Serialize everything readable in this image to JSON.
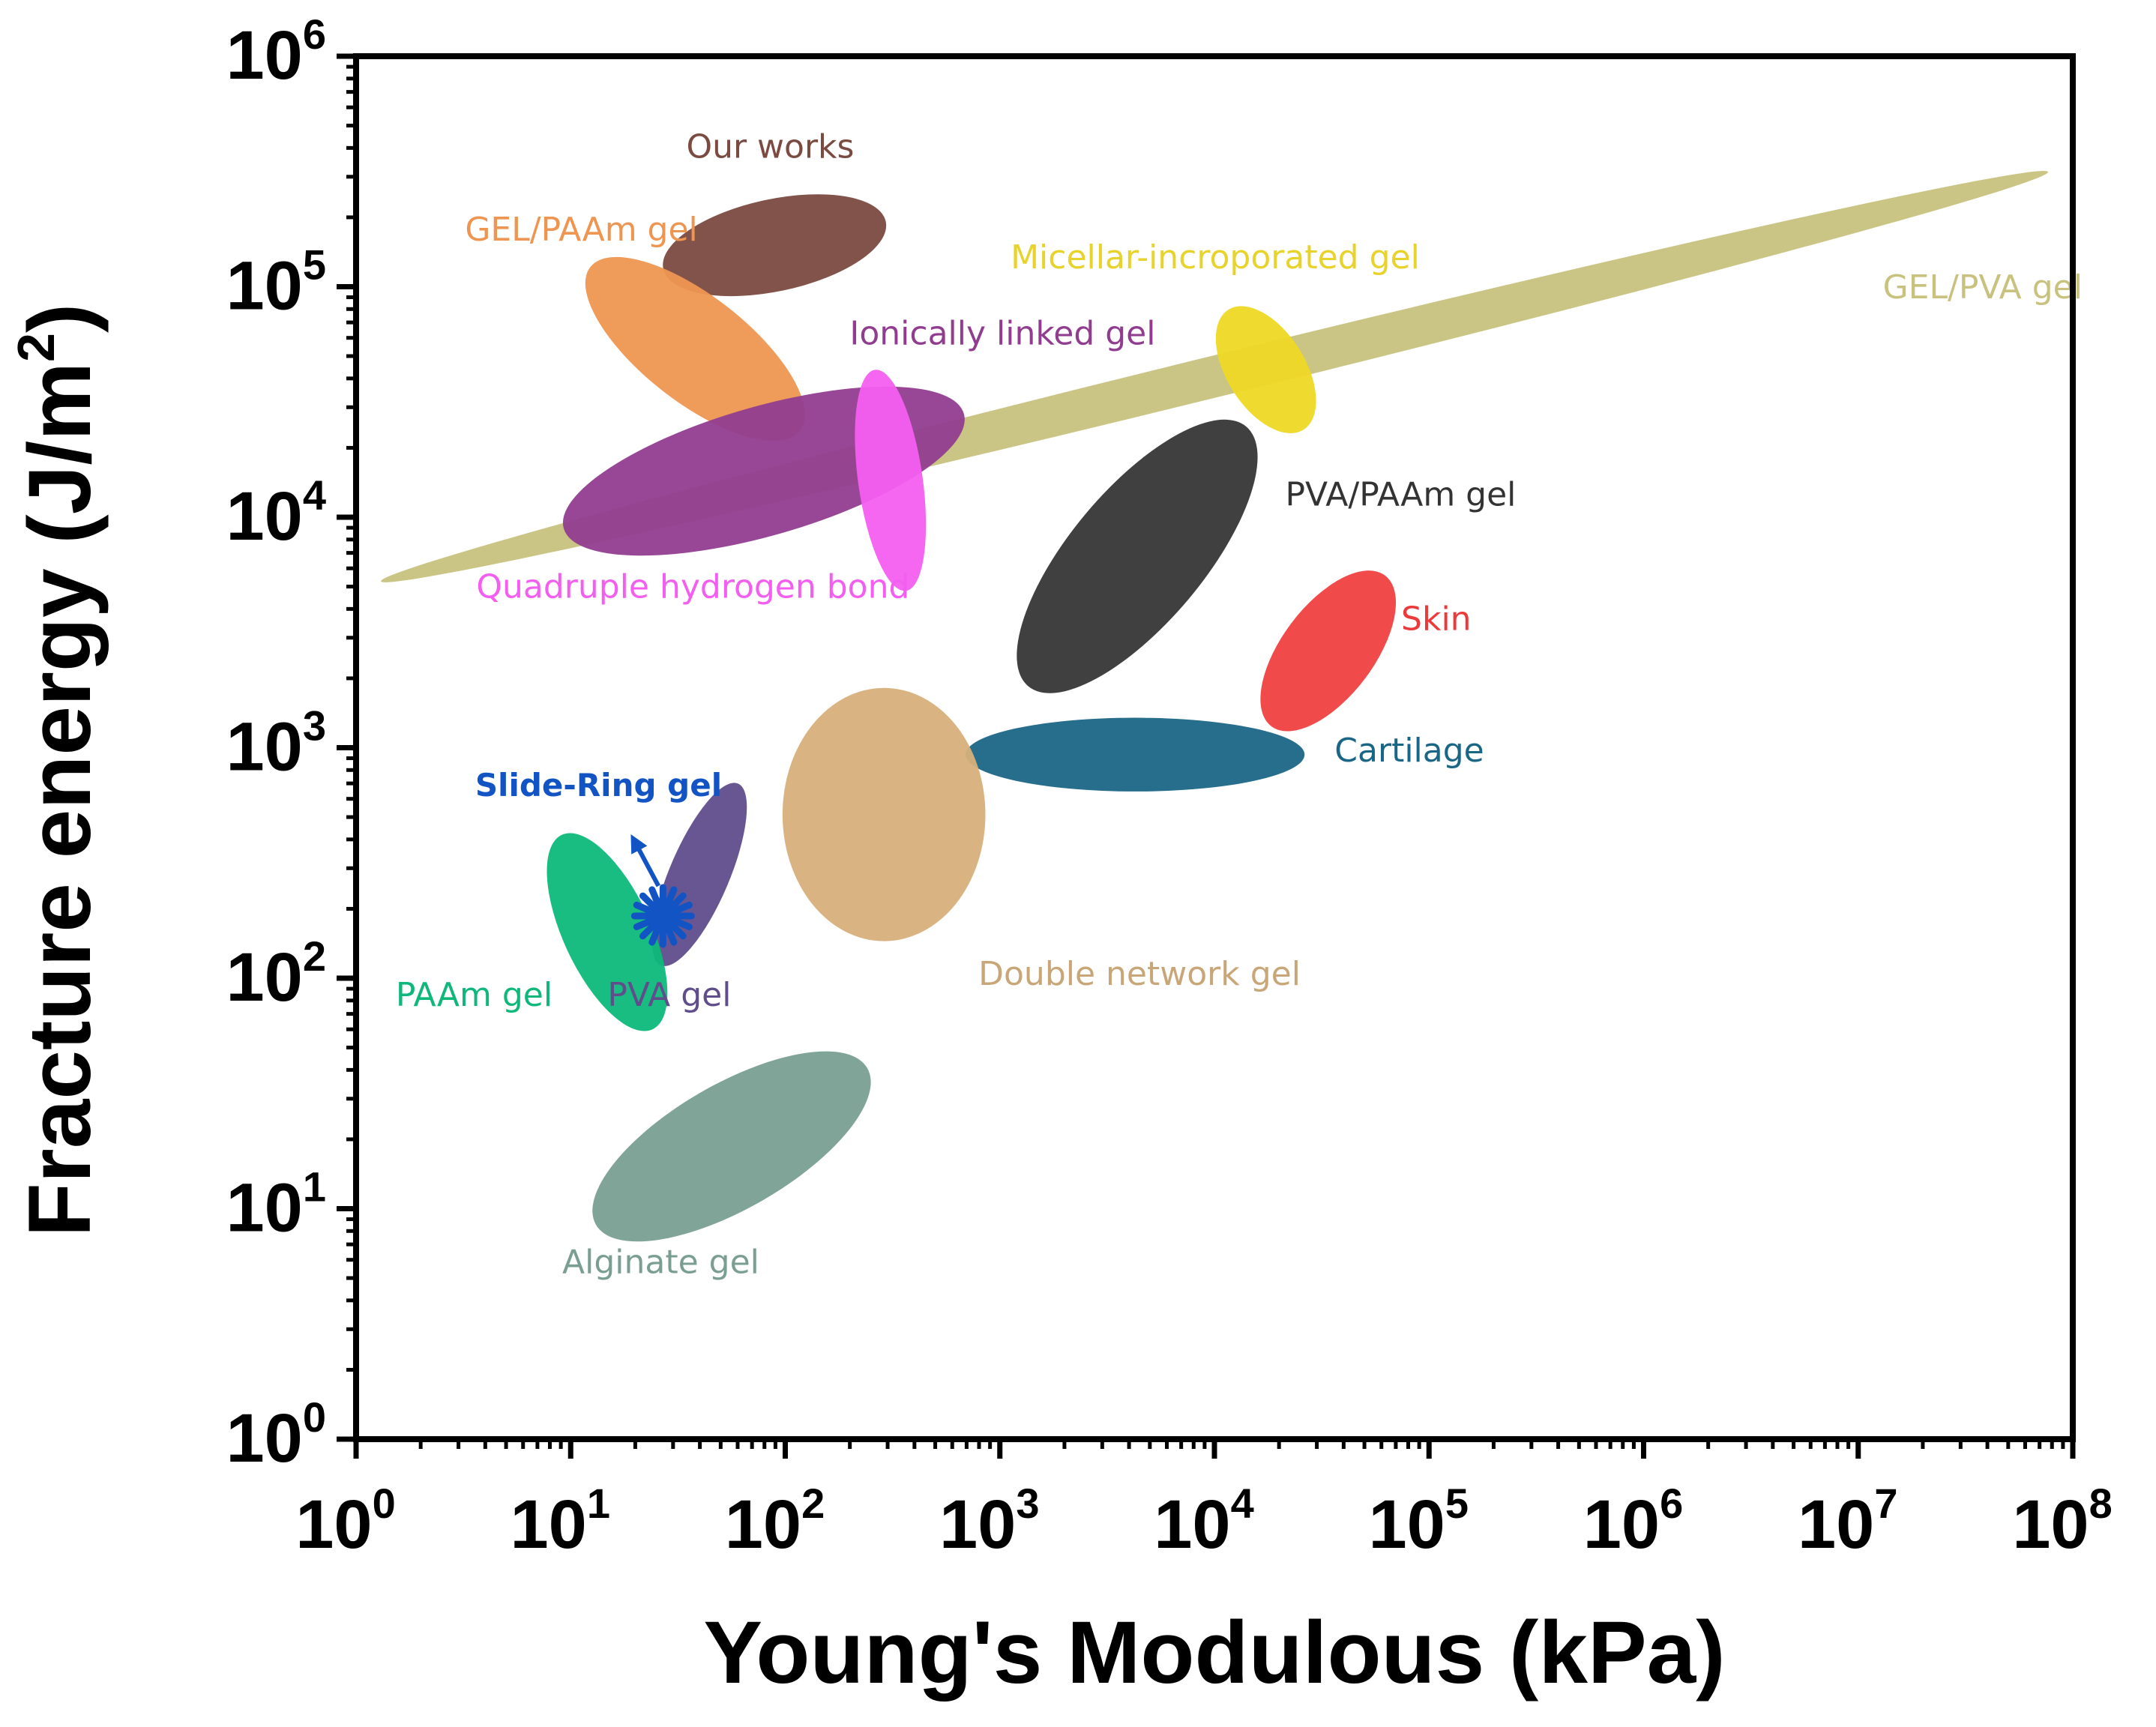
{
  "chart_data": {
    "type": "scatter",
    "title": "",
    "xlabel": "Young's Modulous (kPa)",
    "ylabel": "Fracture energy (J/m²)",
    "xscale": "log",
    "yscale": "log",
    "xlim_log10": [
      0,
      8
    ],
    "ylim_log10": [
      0,
      6
    ],
    "x_ticks": [
      {
        "exp": 0,
        "base": "10",
        "sup": "0"
      },
      {
        "exp": 1,
        "base": "10",
        "sup": "1"
      },
      {
        "exp": 2,
        "base": "10",
        "sup": "2"
      },
      {
        "exp": 3,
        "base": "10",
        "sup": "3"
      },
      {
        "exp": 4,
        "base": "10",
        "sup": "4"
      },
      {
        "exp": 5,
        "base": "10",
        "sup": "5"
      },
      {
        "exp": 6,
        "base": "10",
        "sup": "6"
      },
      {
        "exp": 7,
        "base": "10",
        "sup": "7"
      },
      {
        "exp": 8,
        "base": "10",
        "sup": "8"
      }
    ],
    "y_ticks": [
      {
        "exp": 0,
        "base": "10",
        "sup": "0"
      },
      {
        "exp": 1,
        "base": "10",
        "sup": "1"
      },
      {
        "exp": 2,
        "base": "10",
        "sup": "2"
      },
      {
        "exp": 3,
        "base": "10",
        "sup": "3"
      },
      {
        "exp": 4,
        "base": "10",
        "sup": "4"
      },
      {
        "exp": 5,
        "base": "10",
        "sup": "5"
      },
      {
        "exp": 6,
        "base": "10",
        "sup": "6"
      }
    ],
    "regions": [
      {
        "name": "GEL/PVA gel",
        "color": "#c8c27e",
        "cx": 4.0,
        "cy": 4.61,
        "rx": 4.0,
        "ry": 0.09,
        "rot": -13.8,
        "label": "GEL/PVA gel",
        "label_color": "#c8c27e",
        "label_x": 7.58,
        "label_y": 4.95,
        "label_anchor": "middle"
      },
      {
        "name": "Our works",
        "color": "#7b4a40",
        "cx": 1.95,
        "cy": 5.18,
        "rx": 0.53,
        "ry": 0.2,
        "rot": -12,
        "label": "Our works",
        "label_color": "#7b4a40",
        "label_x": 1.93,
        "label_y": 5.56,
        "label_anchor": "middle"
      },
      {
        "name": "GEL/PAAm gel",
        "color": "#ee9651",
        "cx": 1.58,
        "cy": 4.73,
        "rx": 0.62,
        "ry": 0.23,
        "rot": 38,
        "label": "GEL/PAAm gel",
        "label_color": "#ee9651",
        "label_x": 1.05,
        "label_y": 5.2,
        "label_anchor": "middle"
      },
      {
        "name": "Ionically linked gel",
        "color": "#913d8f",
        "cx": 1.9,
        "cy": 4.2,
        "rx": 0.97,
        "ry": 0.28,
        "rot": -16,
        "label": "Ionically linked gel",
        "label_color": "#913d8f",
        "label_x": 2.3,
        "label_y": 4.75,
        "label_anchor": "start"
      },
      {
        "name": "Quadruple hydrogen bond",
        "color": "#f45ef0",
        "cx": 2.49,
        "cy": 4.16,
        "rx": 0.52,
        "ry": 0.14,
        "rot": 82,
        "label": "Quadruple hydrogen bond",
        "label_color": "#f45ef0",
        "label_x": 1.57,
        "label_y": 3.65,
        "label_anchor": "middle"
      },
      {
        "name": "Micellar-incroporated gel",
        "color": "#eed825",
        "cx": 4.24,
        "cy": 4.64,
        "rx": 0.33,
        "ry": 0.17,
        "rot": 58,
        "label": "Micellar-incroporated gel",
        "label_color": "#e8d22c",
        "label_x": 3.05,
        "label_y": 5.08,
        "label_anchor": "start"
      },
      {
        "name": "PVA/PAAm gel",
        "color": "#363636",
        "cx": 3.64,
        "cy": 3.83,
        "rx": 0.79,
        "ry": 0.29,
        "rot": -50,
        "label": "PVA/PAAm gel",
        "label_color": "#333333",
        "label_x": 4.33,
        "label_y": 4.05,
        "label_anchor": "start"
      },
      {
        "name": "Skin",
        "color": "#ef4040",
        "cx": 4.53,
        "cy": 3.42,
        "rx": 0.44,
        "ry": 0.2,
        "rot": -53,
        "label": "Skin",
        "label_color": "#ec3a3a",
        "label_x": 4.87,
        "label_y": 3.51,
        "label_anchor": "start"
      },
      {
        "name": "Cartilage",
        "color": "#1a6686",
        "cx": 3.63,
        "cy": 2.97,
        "rx": 0.79,
        "ry": 0.16,
        "rot": 0,
        "label": "Cartilage",
        "label_color": "#1a6686",
        "label_x": 4.56,
        "label_y": 2.94,
        "label_anchor": "start"
      },
      {
        "name": "Double network gel",
        "color": "#d7b07b",
        "cx": 2.46,
        "cy": 2.71,
        "rx": 0.59,
        "ry": 0.44,
        "rot": 90,
        "label": "Double network gel",
        "label_color": "#c9a677",
        "label_x": 2.9,
        "label_y": 1.97,
        "label_anchor": "start"
      },
      {
        "name": "PVA gel",
        "color": "#604d8c",
        "cx": 1.6,
        "cy": 2.45,
        "rx": 0.46,
        "ry": 0.13,
        "rot": -67,
        "label": "PVA gel",
        "label_color": "#604d8c",
        "label_x": 1.46,
        "label_y": 1.88,
        "label_anchor": "middle"
      },
      {
        "name": "PAAm gel",
        "color": "#0db97a",
        "cx": 1.17,
        "cy": 2.2,
        "rx": 0.5,
        "ry": 0.19,
        "rot": 65,
        "label": "PAAm gel",
        "label_color": "#0fb77a",
        "label_x": 0.55,
        "label_y": 1.88,
        "label_anchor": "middle"
      },
      {
        "name": "Alginate gel",
        "color": "#7a9f92",
        "cx": 1.75,
        "cy": 1.27,
        "rx": 0.73,
        "ry": 0.27,
        "rot": -30,
        "label": "Alginate gel",
        "label_color": "#7a9f92",
        "label_x": 1.42,
        "label_y": 0.72,
        "label_anchor": "middle"
      }
    ],
    "slide_ring": {
      "name": "Slide-Ring gel",
      "label": "Slide-Ring gel",
      "color": "#1254c4",
      "x_log10": 1.43,
      "y_log10": 2.27,
      "label_x": 1.13,
      "label_y": 2.79,
      "arrow_tip_x": 1.3,
      "arrow_tip_y": 2.59
    }
  }
}
